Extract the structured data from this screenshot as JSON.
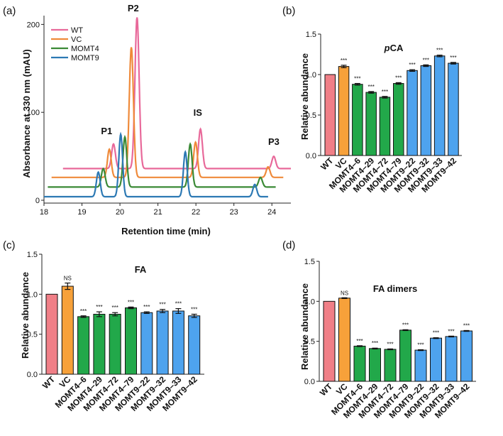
{
  "colors": {
    "wt": "#f07f87",
    "vc": "#f7a13a",
    "momt4": "#22a84a",
    "momt9": "#4ea3ee",
    "trace_wt": "#e8699a",
    "trace_vc": "#ef8a3a",
    "trace_momt4": "#3b8a36",
    "trace_momt9": "#2c79b4"
  },
  "chart_data": [
    {
      "panel": "(a)",
      "type": "line",
      "title": "",
      "xlabel": "Retention time (min)",
      "ylabel": "Absorbance at 330 nm (mAU)",
      "xlim": [
        18,
        24.5
      ],
      "ylim": [
        0,
        210
      ],
      "xticks": [
        18,
        19,
        20,
        21,
        22,
        23,
        24
      ],
      "yticks": [
        0,
        100,
        200
      ],
      "legend": [
        "WT",
        "VC",
        "MOMT4",
        "MOMT9"
      ],
      "legend_position": "top-left",
      "peak_labels": [
        {
          "text": "P1",
          "x": 19.65,
          "y": 75
        },
        {
          "text": "P2",
          "x": 20.35,
          "y": 215
        },
        {
          "text": "IS",
          "x": 22.05,
          "y": 96
        },
        {
          "text": "P3",
          "x": 24.05,
          "y": 63
        }
      ],
      "series": [
        {
          "name": "WT",
          "color_key": "trace_wt",
          "baseline": 36,
          "xstart": 18.5,
          "xend": 24.5,
          "peaks": [
            {
              "x": 19.83,
              "h": 28,
              "w": 0.05
            },
            {
              "x": 20.45,
              "h": 172,
              "w": 0.055
            },
            {
              "x": 22.12,
              "h": 45,
              "w": 0.05
            },
            {
              "x": 24.05,
              "h": 14,
              "w": 0.05
            }
          ]
        },
        {
          "name": "VC",
          "color_key": "trace_vc",
          "baseline": 26,
          "xstart": 18.2,
          "xend": 24.3,
          "peaks": [
            {
              "x": 19.72,
              "h": 32,
              "w": 0.05
            },
            {
              "x": 20.3,
              "h": 148,
              "w": 0.055
            },
            {
              "x": 21.99,
              "h": 40,
              "w": 0.05
            },
            {
              "x": 23.9,
              "h": 12,
              "w": 0.05
            }
          ]
        },
        {
          "name": "MOMT4",
          "color_key": "trace_momt4",
          "baseline": 15,
          "xstart": 18.1,
          "xend": 24.1,
          "peaks": [
            {
              "x": 19.56,
              "h": 21,
              "w": 0.05
            },
            {
              "x": 20.13,
              "h": 57,
              "w": 0.05
            },
            {
              "x": 21.85,
              "h": 49,
              "w": 0.05
            },
            {
              "x": 23.7,
              "h": 11,
              "w": 0.05
            }
          ]
        },
        {
          "name": "MOMT9",
          "color_key": "trace_momt9",
          "baseline": 4,
          "xstart": 18.0,
          "xend": 23.9,
          "peaks": [
            {
              "x": 19.43,
              "h": 28,
              "w": 0.05
            },
            {
              "x": 20.02,
              "h": 71,
              "w": 0.05
            },
            {
              "x": 21.72,
              "h": 51,
              "w": 0.05
            },
            {
              "x": 23.55,
              "h": 14,
              "w": 0.05
            }
          ]
        }
      ]
    },
    {
      "panel": "(b)",
      "type": "bar",
      "title": "pCA",
      "title_italic": "p",
      "title_rest": "CA",
      "ylabel": "Relative abundance",
      "xlabel": "",
      "ylim": [
        0,
        1.5
      ],
      "yticks": [
        "0.0",
        "0.5",
        "1.0",
        "1.5"
      ],
      "categories": [
        "WT",
        "VC",
        "MOMT4–6",
        "MOMT4–29",
        "MOMT4–72",
        "MOMT4–79",
        "MOMT9–22",
        "MOMT9–32",
        "MOMT9–33",
        "MOMT9–42"
      ],
      "values": [
        1.0,
        1.1,
        0.88,
        0.78,
        0.72,
        0.89,
        1.05,
        1.11,
        1.23,
        1.14
      ],
      "errors": [
        0.0,
        0.015,
        0.01,
        0.01,
        0.01,
        0.01,
        0.01,
        0.01,
        0.01,
        0.01
      ],
      "significance": [
        "",
        "***",
        "***",
        "***",
        "***",
        "***",
        "***",
        "***",
        "***",
        "***"
      ],
      "color_keys": [
        "wt",
        "vc",
        "momt4",
        "momt4",
        "momt4",
        "momt4",
        "momt9",
        "momt9",
        "momt9",
        "momt9"
      ]
    },
    {
      "panel": "(c)",
      "type": "bar",
      "title": "FA",
      "ylabel": "Relative abundance",
      "xlabel": "",
      "ylim": [
        0,
        1.5
      ],
      "yticks": [
        "0.0",
        "0.5",
        "1.0",
        "1.5"
      ],
      "categories": [
        "WT",
        "VC",
        "MOMT4–6",
        "MOMT4–29",
        "MOMT4–72",
        "MOMT4–79",
        "MOMT9–22",
        "MOMT9–32",
        "MOMT9–33",
        "MOMT9–42"
      ],
      "values": [
        1.0,
        1.1,
        0.72,
        0.75,
        0.75,
        0.83,
        0.77,
        0.79,
        0.79,
        0.73
      ],
      "errors": [
        0.0,
        0.04,
        0.01,
        0.03,
        0.02,
        0.01,
        0.01,
        0.02,
        0.03,
        0.02
      ],
      "significance": [
        "",
        "NS",
        "***",
        "***",
        "***",
        "***",
        "***",
        "***",
        "***",
        "***"
      ],
      "color_keys": [
        "wt",
        "vc",
        "momt4",
        "momt4",
        "momt4",
        "momt4",
        "momt9",
        "momt9",
        "momt9",
        "momt9"
      ]
    },
    {
      "panel": "(d)",
      "type": "bar",
      "title": "FA dimers",
      "ylabel": "Relative abundance",
      "xlabel": "",
      "ylim": [
        0,
        1.5
      ],
      "yticks": [
        "0.0",
        "0.5",
        "1.0",
        "1.5"
      ],
      "categories": [
        "WT",
        "VC",
        "MOMT4–6",
        "MOMT4–29",
        "MOMT4–72",
        "MOMT4–79",
        "MOMT9–22",
        "MOMT9–32",
        "MOMT9–33",
        "MOMT9–42"
      ],
      "values": [
        1.0,
        1.04,
        0.44,
        0.41,
        0.4,
        0.64,
        0.39,
        0.54,
        0.56,
        0.63
      ],
      "errors": [
        0.0,
        0.005,
        0.005,
        0.005,
        0.005,
        0.005,
        0.005,
        0.005,
        0.005,
        0.005
      ],
      "significance": [
        "",
        "NS",
        "***",
        "***",
        "***",
        "***",
        "***",
        "***",
        "***",
        "***"
      ],
      "color_keys": [
        "wt",
        "vc",
        "momt4",
        "momt4",
        "momt4",
        "momt4",
        "momt9",
        "momt9",
        "momt9",
        "momt9"
      ]
    }
  ]
}
